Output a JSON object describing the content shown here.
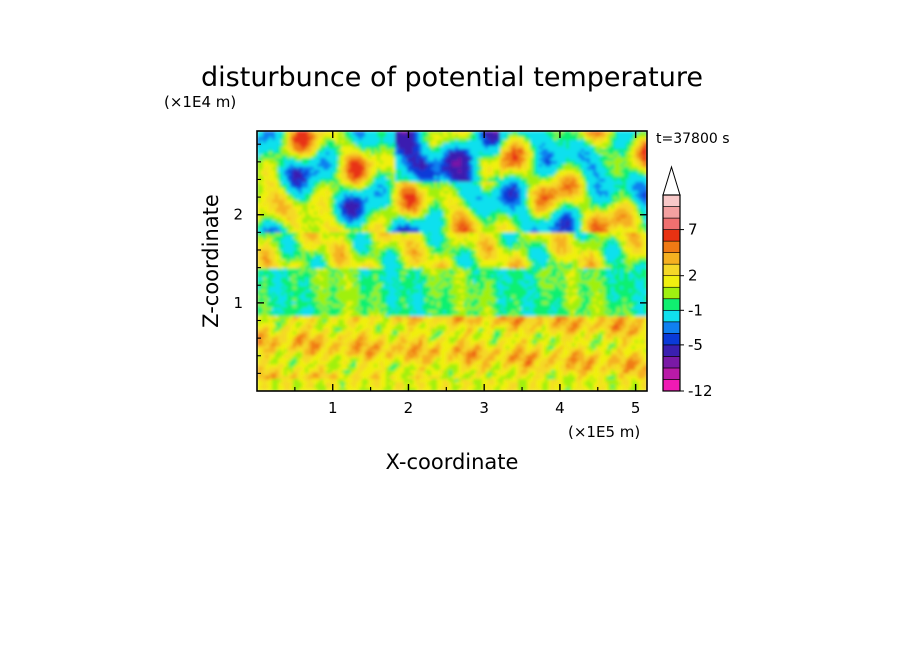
{
  "chart_data": {
    "type": "heatmap",
    "title": "disturbunce of potential temperature",
    "time_label": "t=37800 s",
    "xlabel": "X-coordinate",
    "ylabel": "Z-coordinate",
    "x_unit": "(×1E5 m)",
    "y_unit": "(×1E4 m)",
    "xlim": [
      0,
      5.15
    ],
    "ylim": [
      0,
      2.95
    ],
    "x_ticks": [
      1,
      2,
      3,
      4,
      5
    ],
    "y_ticks": [
      1,
      2
    ],
    "colorbar": {
      "levels": [
        -12,
        -10,
        -8,
        -7,
        -5,
        -4,
        -3,
        -1,
        0,
        1,
        2,
        3,
        4,
        5,
        7,
        8,
        9,
        10
      ],
      "colors": [
        "#f01ab4",
        "#b91aa8",
        "#7a19a6",
        "#3a1fb0",
        "#0a3ad8",
        "#1080f0",
        "#10e0ee",
        "#10f070",
        "#a0f010",
        "#f0f010",
        "#f5d828",
        "#f5b020",
        "#f07a14",
        "#e83212",
        "#f07070",
        "#f4a0a0",
        "#f8c8c8"
      ],
      "tick_labels": [
        "7",
        "2",
        "-1",
        "-5",
        "-12"
      ],
      "tick_values": [
        7,
        2,
        -1,
        -5,
        -12
      ],
      "extend": "max"
    },
    "legend_position": "right",
    "grid": false
  }
}
